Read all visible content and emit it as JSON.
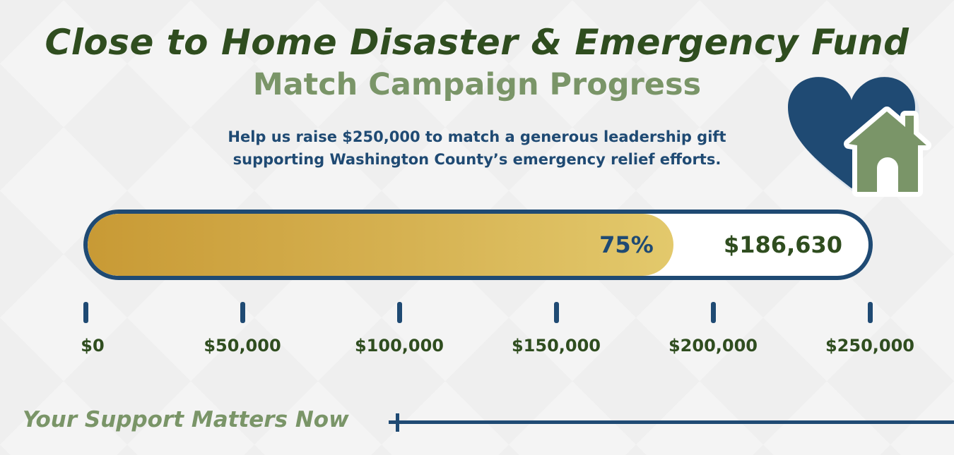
{
  "header": {
    "title": "Close to Home Disaster & Emergency Fund",
    "subtitle": "Match Campaign Progress",
    "description_line1": "Help us raise $250,000 to match a generous leadership gift",
    "description_line2": "supporting Washington County’s emergency relief efforts."
  },
  "logo": {
    "icon": "heart-home-icon",
    "heart_color": "#1f4a73",
    "house_color": "#7a9568"
  },
  "progress": {
    "percent_label": "75%",
    "amount_label": "$186,630",
    "raised": 186630,
    "goal": 250000,
    "fill_fraction": 0.75
  },
  "scale": {
    "ticks": [
      {
        "value": 0,
        "label": "$0"
      },
      {
        "value": 50000,
        "label": "$50,000"
      },
      {
        "value": 100000,
        "label": "$100,000"
      },
      {
        "value": 150000,
        "label": "$150,000"
      },
      {
        "value": 200000,
        "label": "$200,000"
      },
      {
        "value": 250000,
        "label": "$250,000"
      }
    ]
  },
  "footer": {
    "tagline": "Your Support Matters Now"
  },
  "colors": {
    "navy": "#1f4a73",
    "dark_green": "#2f4d1f",
    "sage_green": "#7a9568",
    "gold_start": "#c89a35",
    "gold_end": "#e3c96c",
    "background": "#f4f4f4"
  }
}
